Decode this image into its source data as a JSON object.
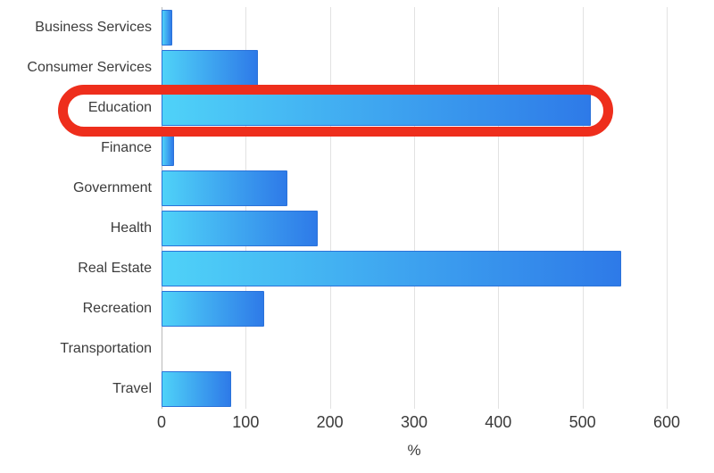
{
  "chart_data": {
    "type": "bar",
    "orientation": "horizontal",
    "title": "",
    "categories": [
      "Business Services",
      "Consumer Services",
      "Education",
      "Finance",
      "Government",
      "Health",
      "Real Estate",
      "Recreation",
      "Transportation",
      "Travel"
    ],
    "values": [
      13,
      114,
      510,
      15,
      150,
      185,
      546,
      122,
      0,
      83
    ],
    "xlabel": "%",
    "xticks": [
      0,
      100,
      200,
      300,
      400,
      500,
      600
    ],
    "xlim": [
      0,
      650
    ],
    "grid": "vertical-gridlines-only",
    "legend": "none"
  },
  "annotation": {
    "type": "red-circle-highlight",
    "target_category": "Education",
    "color": "#ee2e1c"
  },
  "colors": {
    "bar_gradient_start": "#4fd2f8",
    "bar_gradient_end": "#2e7ae8",
    "bar_border": "#2b72d9",
    "gridline": "#e2e2e2",
    "axis_line": "#b9b9b9",
    "text": "#3c3c3c",
    "background": "#ffffff"
  }
}
